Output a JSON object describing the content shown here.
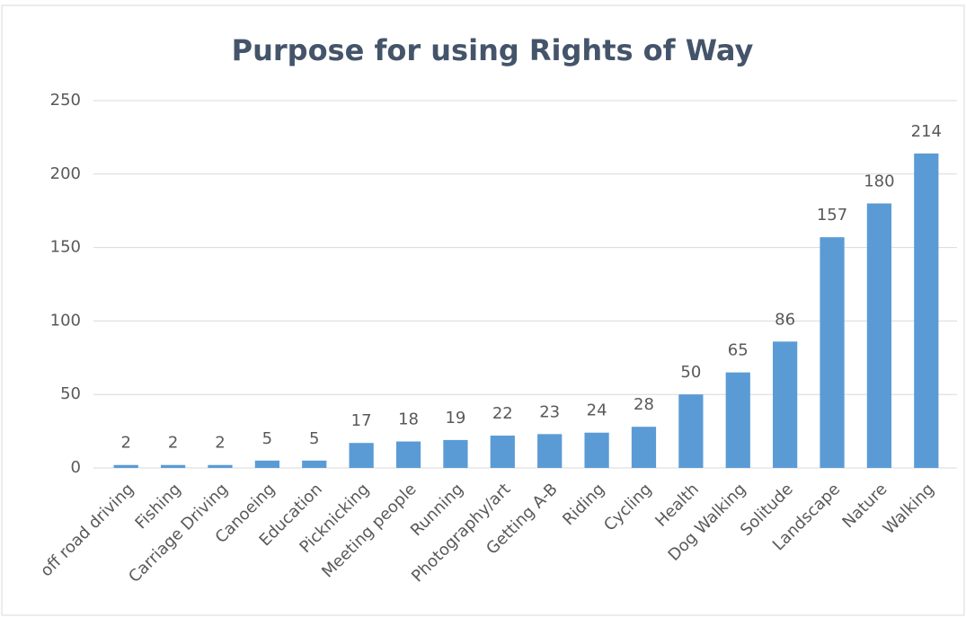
{
  "chart_data": {
    "type": "bar",
    "title": "Purpose for using Rights of Way",
    "categories": [
      "off road driving",
      "Fishing",
      "Carriage Driving",
      "Canoeing",
      "Education",
      "Picknicking",
      "Meeting people",
      "Running",
      "Photography/art",
      "Getting A-B",
      "Riding",
      "Cycling",
      "Health",
      "Dog Walking",
      "Solitude",
      "Landscape",
      "Nature",
      "Walking"
    ],
    "values": [
      2,
      2,
      2,
      5,
      5,
      17,
      18,
      19,
      22,
      23,
      24,
      28,
      50,
      65,
      86,
      157,
      180,
      214
    ],
    "color": "#5b9bd5",
    "ylim": [
      0,
      250
    ],
    "yticks": [
      0,
      50,
      100,
      150,
      200,
      250
    ],
    "grid": true
  }
}
